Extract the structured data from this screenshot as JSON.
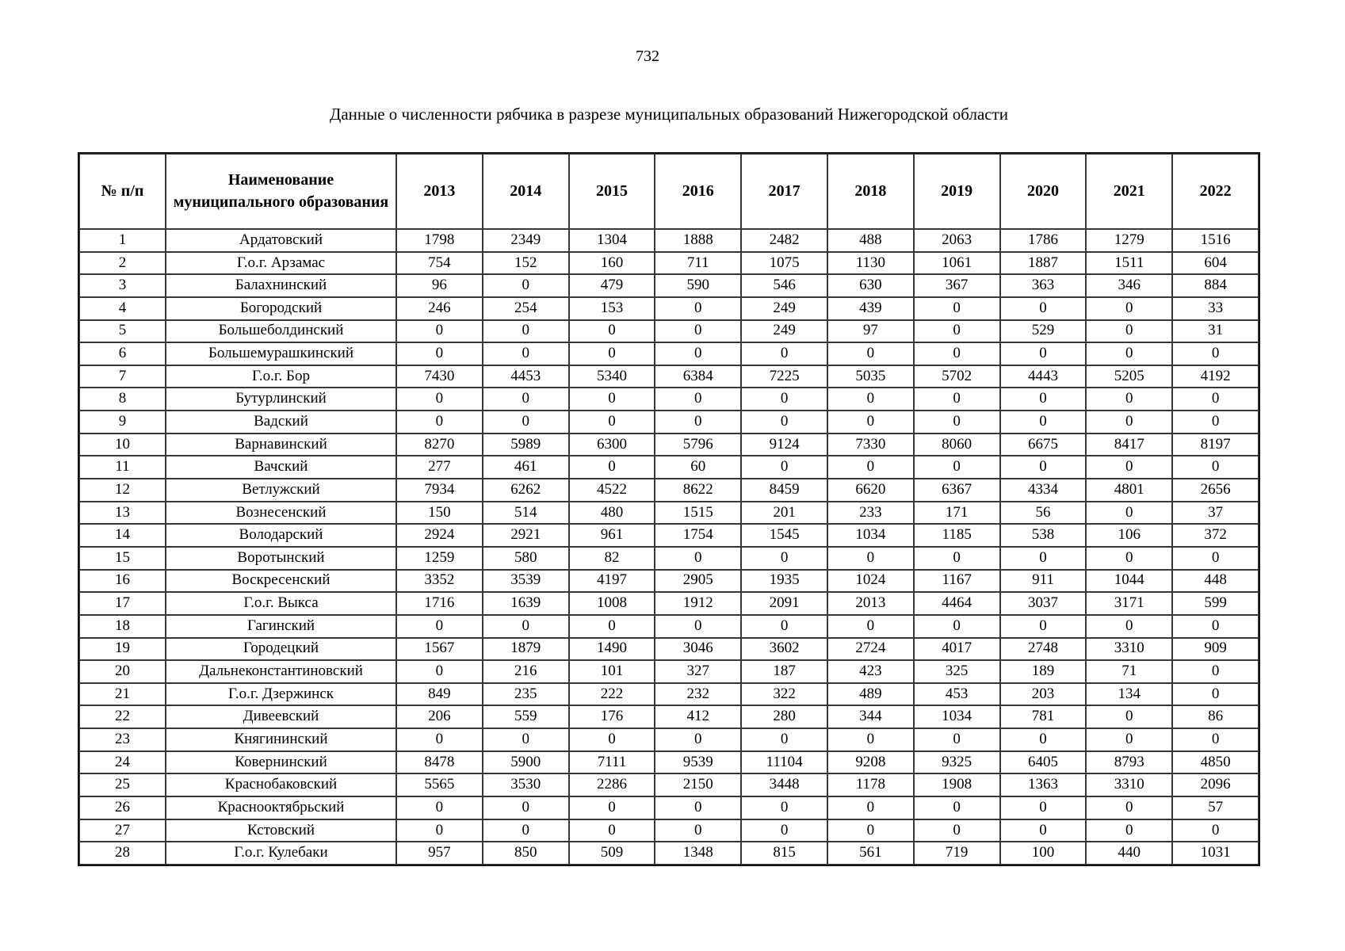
{
  "page": {
    "number": "732",
    "title": "Данные о численности рябчика в разрезе муниципальных образований Нижегородской области"
  },
  "table": {
    "columns": [
      "№ п/п",
      "Наименование муниципального образования",
      "2013",
      "2014",
      "2015",
      "2016",
      "2017",
      "2018",
      "2019",
      "2020",
      "2021",
      "2022"
    ],
    "rows": [
      {
        "num": "1",
        "name": "Ардатовский",
        "values": [
          "1798",
          "2349",
          "1304",
          "1888",
          "2482",
          "488",
          "2063",
          "1786",
          "1279",
          "1516"
        ]
      },
      {
        "num": "2",
        "name": "Г.о.г. Арзамас",
        "values": [
          "754",
          "152",
          "160",
          "711",
          "1075",
          "1130",
          "1061",
          "1887",
          "1511",
          "604"
        ]
      },
      {
        "num": "3",
        "name": "Балахнинский",
        "values": [
          "96",
          "0",
          "479",
          "590",
          "546",
          "630",
          "367",
          "363",
          "346",
          "884"
        ]
      },
      {
        "num": "4",
        "name": "Богородский",
        "values": [
          "246",
          "254",
          "153",
          "0",
          "249",
          "439",
          "0",
          "0",
          "0",
          "33"
        ]
      },
      {
        "num": "5",
        "name": "Большеболдинский",
        "values": [
          "0",
          "0",
          "0",
          "0",
          "249",
          "97",
          "0",
          "529",
          "0",
          "31"
        ]
      },
      {
        "num": "6",
        "name": "Большемурашкинский",
        "values": [
          "0",
          "0",
          "0",
          "0",
          "0",
          "0",
          "0",
          "0",
          "0",
          "0"
        ]
      },
      {
        "num": "7",
        "name": "Г.о.г. Бор",
        "values": [
          "7430",
          "4453",
          "5340",
          "6384",
          "7225",
          "5035",
          "5702",
          "4443",
          "5205",
          "4192"
        ]
      },
      {
        "num": "8",
        "name": "Бутурлинский",
        "values": [
          "0",
          "0",
          "0",
          "0",
          "0",
          "0",
          "0",
          "0",
          "0",
          "0"
        ]
      },
      {
        "num": "9",
        "name": "Вадский",
        "values": [
          "0",
          "0",
          "0",
          "0",
          "0",
          "0",
          "0",
          "0",
          "0",
          "0"
        ]
      },
      {
        "num": "10",
        "name": "Варнавинский",
        "values": [
          "8270",
          "5989",
          "6300",
          "5796",
          "9124",
          "7330",
          "8060",
          "6675",
          "8417",
          "8197"
        ]
      },
      {
        "num": "11",
        "name": "Вачский",
        "values": [
          "277",
          "461",
          "0",
          "60",
          "0",
          "0",
          "0",
          "0",
          "0",
          "0"
        ]
      },
      {
        "num": "12",
        "name": "Ветлужский",
        "values": [
          "7934",
          "6262",
          "4522",
          "8622",
          "8459",
          "6620",
          "6367",
          "4334",
          "4801",
          "2656"
        ]
      },
      {
        "num": "13",
        "name": "Вознесенский",
        "values": [
          "150",
          "514",
          "480",
          "1515",
          "201",
          "233",
          "171",
          "56",
          "0",
          "37"
        ]
      },
      {
        "num": "14",
        "name": "Володарский",
        "values": [
          "2924",
          "2921",
          "961",
          "1754",
          "1545",
          "1034",
          "1185",
          "538",
          "106",
          "372"
        ]
      },
      {
        "num": "15",
        "name": "Воротынский",
        "values": [
          "1259",
          "580",
          "82",
          "0",
          "0",
          "0",
          "0",
          "0",
          "0",
          "0"
        ]
      },
      {
        "num": "16",
        "name": "Воскресенский",
        "values": [
          "3352",
          "3539",
          "4197",
          "2905",
          "1935",
          "1024",
          "1167",
          "911",
          "1044",
          "448"
        ]
      },
      {
        "num": "17",
        "name": "Г.о.г. Выкса",
        "values": [
          "1716",
          "1639",
          "1008",
          "1912",
          "2091",
          "2013",
          "4464",
          "3037",
          "3171",
          "599"
        ]
      },
      {
        "num": "18",
        "name": "Гагинский",
        "values": [
          "0",
          "0",
          "0",
          "0",
          "0",
          "0",
          "0",
          "0",
          "0",
          "0"
        ]
      },
      {
        "num": "19",
        "name": "Городецкий",
        "values": [
          "1567",
          "1879",
          "1490",
          "3046",
          "3602",
          "2724",
          "4017",
          "2748",
          "3310",
          "909"
        ]
      },
      {
        "num": "20",
        "name": "Дальнеконстантиновский",
        "values": [
          "0",
          "216",
          "101",
          "327",
          "187",
          "423",
          "325",
          "189",
          "71",
          "0"
        ]
      },
      {
        "num": "21",
        "name": "Г.о.г. Дзержинск",
        "values": [
          "849",
          "235",
          "222",
          "232",
          "322",
          "489",
          "453",
          "203",
          "134",
          "0"
        ]
      },
      {
        "num": "22",
        "name": "Дивеевский",
        "values": [
          "206",
          "559",
          "176",
          "412",
          "280",
          "344",
          "1034",
          "781",
          "0",
          "86"
        ]
      },
      {
        "num": "23",
        "name": "Княгининский",
        "values": [
          "0",
          "0",
          "0",
          "0",
          "0",
          "0",
          "0",
          "0",
          "0",
          "0"
        ]
      },
      {
        "num": "24",
        "name": "Ковернинский",
        "values": [
          "8478",
          "5900",
          "7111",
          "9539",
          "11104",
          "9208",
          "9325",
          "6405",
          "8793",
          "4850"
        ]
      },
      {
        "num": "25",
        "name": "Краснобаковский",
        "values": [
          "5565",
          "3530",
          "2286",
          "2150",
          "3448",
          "1178",
          "1908",
          "1363",
          "3310",
          "2096"
        ]
      },
      {
        "num": "26",
        "name": "Краснооктябрьский",
        "values": [
          "0",
          "0",
          "0",
          "0",
          "0",
          "0",
          "0",
          "0",
          "0",
          "57"
        ]
      },
      {
        "num": "27",
        "name": "Кстовский",
        "values": [
          "0",
          "0",
          "0",
          "0",
          "0",
          "0",
          "0",
          "0",
          "0",
          "0"
        ]
      },
      {
        "num": "28",
        "name": "Г.о.г. Кулебаки",
        "values": [
          "957",
          "850",
          "509",
          "1348",
          "815",
          "561",
          "719",
          "100",
          "440",
          "1031"
        ]
      }
    ]
  }
}
